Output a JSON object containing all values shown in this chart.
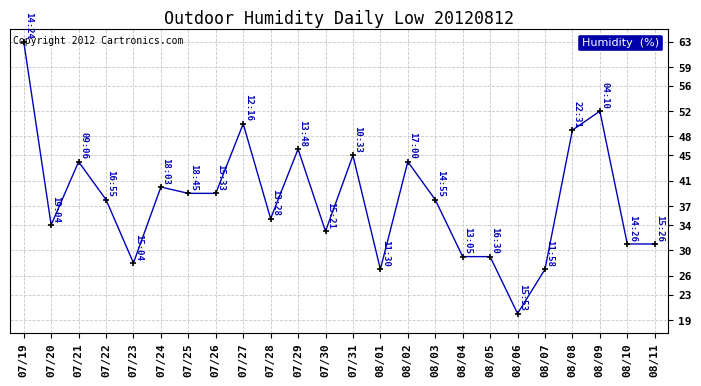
{
  "title": "Outdoor Humidity Daily Low 20120812",
  "copyright": "Copyright 2012 Cartronics.com",
  "legend_label": "Humidity  (%)",
  "background_color": "#ffffff",
  "grid_color": "#c8c8c8",
  "line_color": "#0000bb",
  "marker_color": "#000000",
  "annotation_color": "#0000bb",
  "x_labels": [
    "07/19",
    "07/20",
    "07/21",
    "07/22",
    "07/23",
    "07/24",
    "07/25",
    "07/26",
    "07/27",
    "07/28",
    "07/29",
    "07/30",
    "07/31",
    "08/01",
    "08/02",
    "08/03",
    "08/04",
    "08/05",
    "08/06",
    "08/07",
    "08/08",
    "08/09",
    "08/10",
    "08/11"
  ],
  "y_values": [
    63,
    34,
    44,
    38,
    28,
    40,
    39,
    39,
    50,
    35,
    46,
    33,
    45,
    27,
    44,
    38,
    29,
    29,
    20,
    27,
    49,
    52,
    31,
    31
  ],
  "annotations": [
    "14:24",
    "19:04",
    "09:06",
    "16:55",
    "15:04",
    "18:03",
    "18:45",
    "15:33",
    "12:16",
    "13:28",
    "13:48",
    "15:21",
    "10:33",
    "11:30",
    "17:00",
    "14:55",
    "13:05",
    "16:30",
    "15:53",
    "11:58",
    "22:31",
    "04:10",
    "14:26",
    "15:26"
  ],
  "ylim": [
    17,
    65
  ],
  "yticks": [
    19,
    23,
    26,
    30,
    34,
    37,
    41,
    45,
    48,
    52,
    56,
    59,
    63
  ],
  "title_fontsize": 12,
  "tick_fontsize": 8,
  "annotation_fontsize": 6.5,
  "legend_fontsize": 8,
  "copyright_fontsize": 7
}
